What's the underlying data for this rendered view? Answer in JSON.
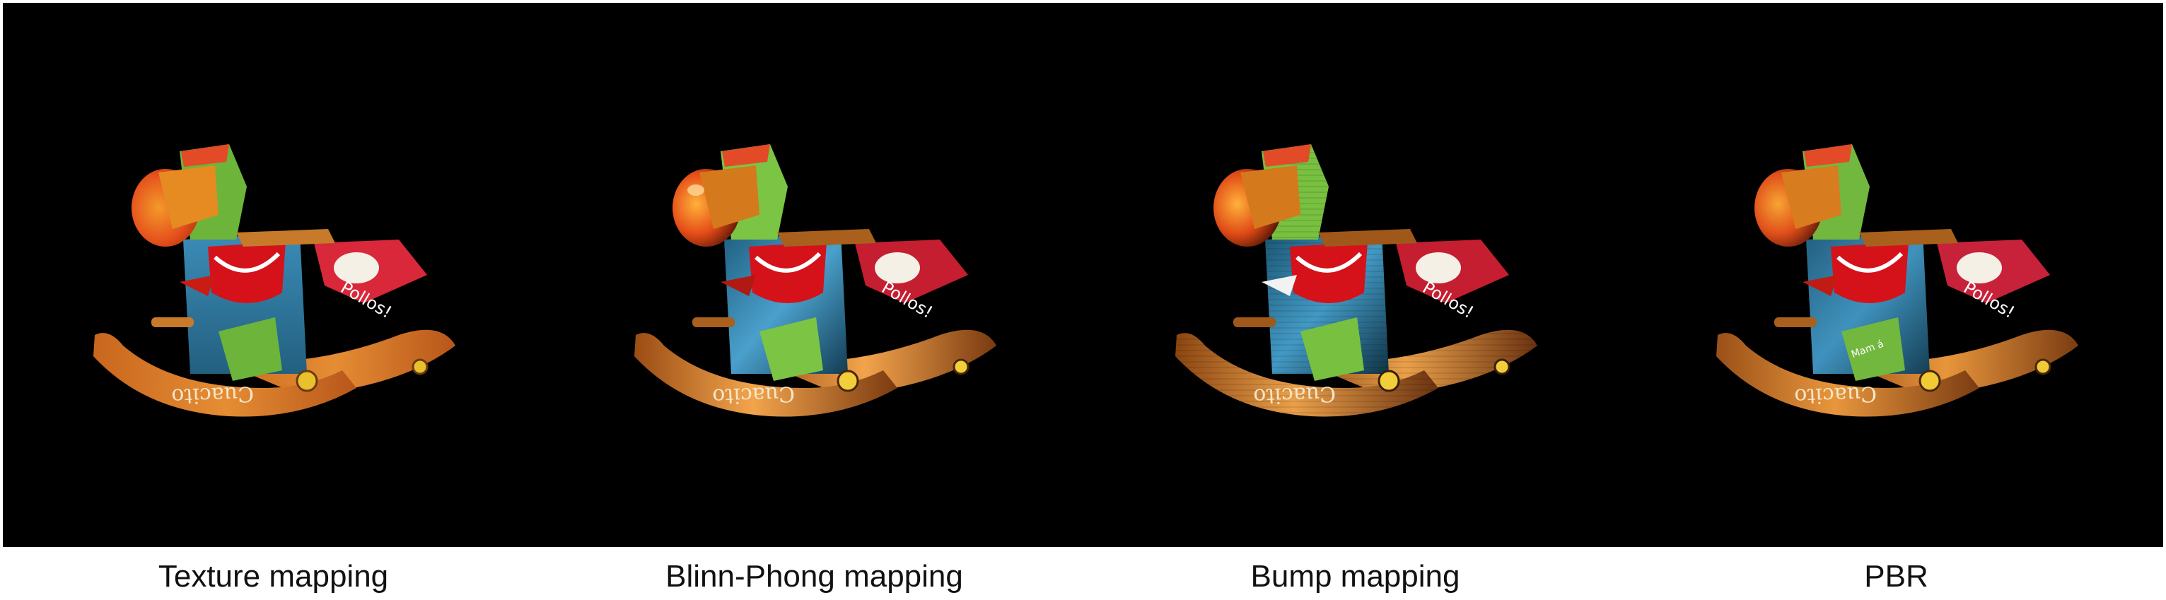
{
  "figure": {
    "background_color": "#000000",
    "panels": [
      {
        "id": "texture",
        "caption": "Texture mapping",
        "shading": "flat"
      },
      {
        "id": "blinn-phong",
        "caption": "Blinn-Phong mapping",
        "shading": "specular"
      },
      {
        "id": "bump",
        "caption": "Bump mapping",
        "shading": "bumpy"
      },
      {
        "id": "pbr",
        "caption": "PBR",
        "shading": "physically-based"
      }
    ],
    "rocking_horse_text": {
      "rocker_signature": "Cuacito",
      "flag_text": "Pollos!",
      "green_patch_text": "Mam á"
    }
  }
}
